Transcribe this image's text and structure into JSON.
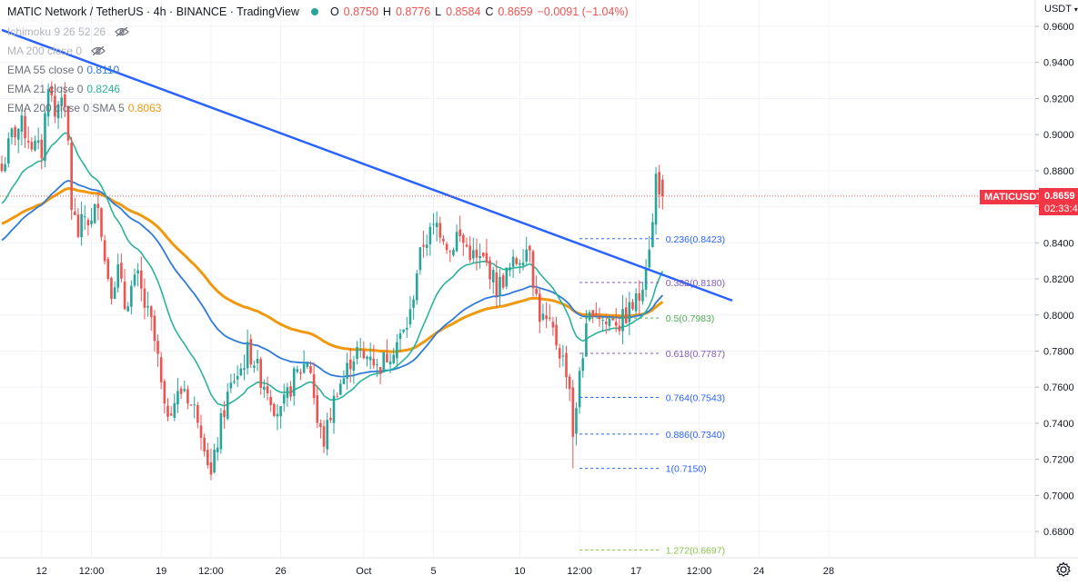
{
  "header": {
    "title": "MATIC Network / TetherUS · 4h · BINANCE · TradingView",
    "open_label": "O",
    "open": "0.8750",
    "high_label": "H",
    "high": "0.8776",
    "low_label": "L",
    "low": "0.8584",
    "close_label": "C",
    "close": "0.8659",
    "change": "−0.0091 (−1.04%)"
  },
  "indicators": [
    {
      "label": "Ichimoku 9 26 52 26",
      "value": "",
      "color": "#b2b5be",
      "hidden": true
    },
    {
      "label": "MA 200 close 0",
      "value": "",
      "color": "#b2b5be",
      "hidden": true
    },
    {
      "label": "EMA 55 close 0",
      "value": "0.8110",
      "color": "#2f7bd9"
    },
    {
      "label": "EMA 21 close 0",
      "value": "0.8246",
      "color": "#2ab39a"
    },
    {
      "label": "EMA 200 close 0 SMA 5",
      "value": "0.8063",
      "color": "#f0990f"
    }
  ],
  "price_scale": {
    "currency": "USDT",
    "symbol_tag": "MATICUSDT",
    "last_price": "0.8659",
    "countdown": "02:33:4"
  },
  "colors": {
    "up": "#26a69a",
    "down": "#ef5350",
    "trendline": "#2962ff",
    "ema21": "#2ab39a",
    "ema55": "#2f7bd9",
    "ema200": "#f0990f",
    "fib_blue": "#2962ff",
    "fib_purple": "#7e57c2",
    "fib_green": "#4caf50",
    "fib_lime": "#8bc34a"
  },
  "chart_data": {
    "type": "candlestick",
    "title": "MATIC Network / TetherUS · 4h · BINANCE",
    "ylim": [
      0.66,
      0.962
    ],
    "y_ticks": [
      "0.9600",
      "0.9400",
      "0.9200",
      "0.9000",
      "0.8800",
      "0.8600",
      "0.8400",
      "0.8200",
      "0.8000",
      "0.7800",
      "0.7600",
      "0.7400",
      "0.7200",
      "0.7000",
      "0.6800"
    ],
    "x_ticks": [
      {
        "label": "12",
        "bar": 12
      },
      {
        "label": "12:00",
        "bar": 27
      },
      {
        "label": "19",
        "bar": 48
      },
      {
        "label": "12:00",
        "bar": 63
      },
      {
        "label": "26",
        "bar": 84
      },
      {
        "label": "Oct",
        "bar": 109
      },
      {
        "label": "5",
        "bar": 130
      },
      {
        "label": "10",
        "bar": 156
      },
      {
        "label": "12:00",
        "bar": 174
      },
      {
        "label": "17",
        "bar": 191
      },
      {
        "label": "12:00",
        "bar": 210
      },
      {
        "label": "24",
        "bar": 228
      },
      {
        "label": "28",
        "bar": 249
      }
    ],
    "bars_total": 260,
    "close_anchors": [
      [
        0,
        0.88
      ],
      [
        3,
        0.9
      ],
      [
        6,
        0.905
      ],
      [
        9,
        0.895
      ],
      [
        12,
        0.89
      ],
      [
        14,
        0.93
      ],
      [
        16,
        0.91
      ],
      [
        18,
        0.925
      ],
      [
        20,
        0.895
      ],
      [
        21,
        0.86
      ],
      [
        23,
        0.845
      ],
      [
        25,
        0.855
      ],
      [
        27,
        0.85
      ],
      [
        29,
        0.865
      ],
      [
        31,
        0.83
      ],
      [
        33,
        0.815
      ],
      [
        35,
        0.825
      ],
      [
        37,
        0.805
      ],
      [
        39,
        0.815
      ],
      [
        41,
        0.82
      ],
      [
        43,
        0.805
      ],
      [
        45,
        0.795
      ],
      [
        47,
        0.775
      ],
      [
        49,
        0.745
      ],
      [
        51,
        0.75
      ],
      [
        53,
        0.755
      ],
      [
        55,
        0.76
      ],
      [
        57,
        0.75
      ],
      [
        59,
        0.745
      ],
      [
        61,
        0.73
      ],
      [
        63,
        0.71
      ],
      [
        64,
        0.72
      ],
      [
        66,
        0.74
      ],
      [
        68,
        0.755
      ],
      [
        70,
        0.765
      ],
      [
        72,
        0.77
      ],
      [
        74,
        0.78
      ],
      [
        76,
        0.775
      ],
      [
        78,
        0.765
      ],
      [
        80,
        0.76
      ],
      [
        82,
        0.75
      ],
      [
        84,
        0.745
      ],
      [
        86,
        0.755
      ],
      [
        88,
        0.765
      ],
      [
        90,
        0.77
      ],
      [
        92,
        0.775
      ],
      [
        93,
        0.77
      ],
      [
        95,
        0.74
      ],
      [
        97,
        0.73
      ],
      [
        99,
        0.745
      ],
      [
        101,
        0.76
      ],
      [
        103,
        0.765
      ],
      [
        105,
        0.775
      ],
      [
        107,
        0.78
      ],
      [
        109,
        0.775
      ],
      [
        111,
        0.78
      ],
      [
        113,
        0.77
      ],
      [
        115,
        0.775
      ],
      [
        117,
        0.78
      ],
      [
        119,
        0.785
      ],
      [
        121,
        0.79
      ],
      [
        123,
        0.8
      ],
      [
        125,
        0.825
      ],
      [
        127,
        0.84
      ],
      [
        129,
        0.845
      ],
      [
        131,
        0.85
      ],
      [
        133,
        0.845
      ],
      [
        135,
        0.835
      ],
      [
        137,
        0.845
      ],
      [
        139,
        0.84
      ],
      [
        141,
        0.835
      ],
      [
        143,
        0.83
      ],
      [
        145,
        0.83
      ],
      [
        147,
        0.825
      ],
      [
        149,
        0.815
      ],
      [
        151,
        0.82
      ],
      [
        153,
        0.825
      ],
      [
        155,
        0.83
      ],
      [
        157,
        0.835
      ],
      [
        159,
        0.84
      ],
      [
        160,
        0.82
      ],
      [
        162,
        0.8
      ],
      [
        164,
        0.795
      ],
      [
        166,
        0.79
      ],
      [
        168,
        0.78
      ],
      [
        170,
        0.77
      ],
      [
        171,
        0.76
      ],
      [
        172,
        0.735
      ],
      [
        173,
        0.745
      ],
      [
        174,
        0.77
      ],
      [
        176,
        0.79
      ],
      [
        178,
        0.805
      ],
      [
        180,
        0.8
      ],
      [
        182,
        0.795
      ],
      [
        184,
        0.8
      ],
      [
        186,
        0.795
      ],
      [
        188,
        0.8
      ],
      [
        190,
        0.805
      ],
      [
        192,
        0.81
      ],
      [
        194,
        0.83
      ],
      [
        196,
        0.85
      ],
      [
        197,
        0.877
      ],
      [
        199,
        0.8659
      ]
    ],
    "series": [
      {
        "name": "EMA 21 close 0",
        "value": 0.8246
      },
      {
        "name": "EMA 55 close 0",
        "value": 0.811
      },
      {
        "name": "EMA 200 close 0 SMA 5",
        "value": 0.8063
      }
    ],
    "trendline": {
      "from": [
        0,
        0.958
      ],
      "to": [
        220,
        0.808
      ]
    },
    "last_price_line": 0.8659,
    "fib_levels": [
      {
        "ratio": "0.236",
        "price": 0.8423,
        "label": "0.236(0.8423)",
        "color": "#2962ff"
      },
      {
        "ratio": "0.382",
        "price": 0.818,
        "label": "0.382(0.8180)",
        "color": "#7e57c2"
      },
      {
        "ratio": "0.5",
        "price": 0.7983,
        "label": "0.5(0.7983)",
        "color": "#4caf50"
      },
      {
        "ratio": "0.618",
        "price": 0.7787,
        "label": "0.618(0.7787)",
        "color": "#7e57c2"
      },
      {
        "ratio": "0.764",
        "price": 0.7543,
        "label": "0.764(0.7543)",
        "color": "#2962ff"
      },
      {
        "ratio": "0.886",
        "price": 0.734,
        "label": "0.886(0.7340)",
        "color": "#2962ff"
      },
      {
        "ratio": "1",
        "price": 0.715,
        "label": "1(0.7150)",
        "color": "#2962ff"
      },
      {
        "ratio": "1.272",
        "price": 0.6697,
        "label": "1.272(0.6697)",
        "color": "#8bc34a"
      }
    ],
    "fib_range_bars": [
      174,
      198
    ]
  }
}
